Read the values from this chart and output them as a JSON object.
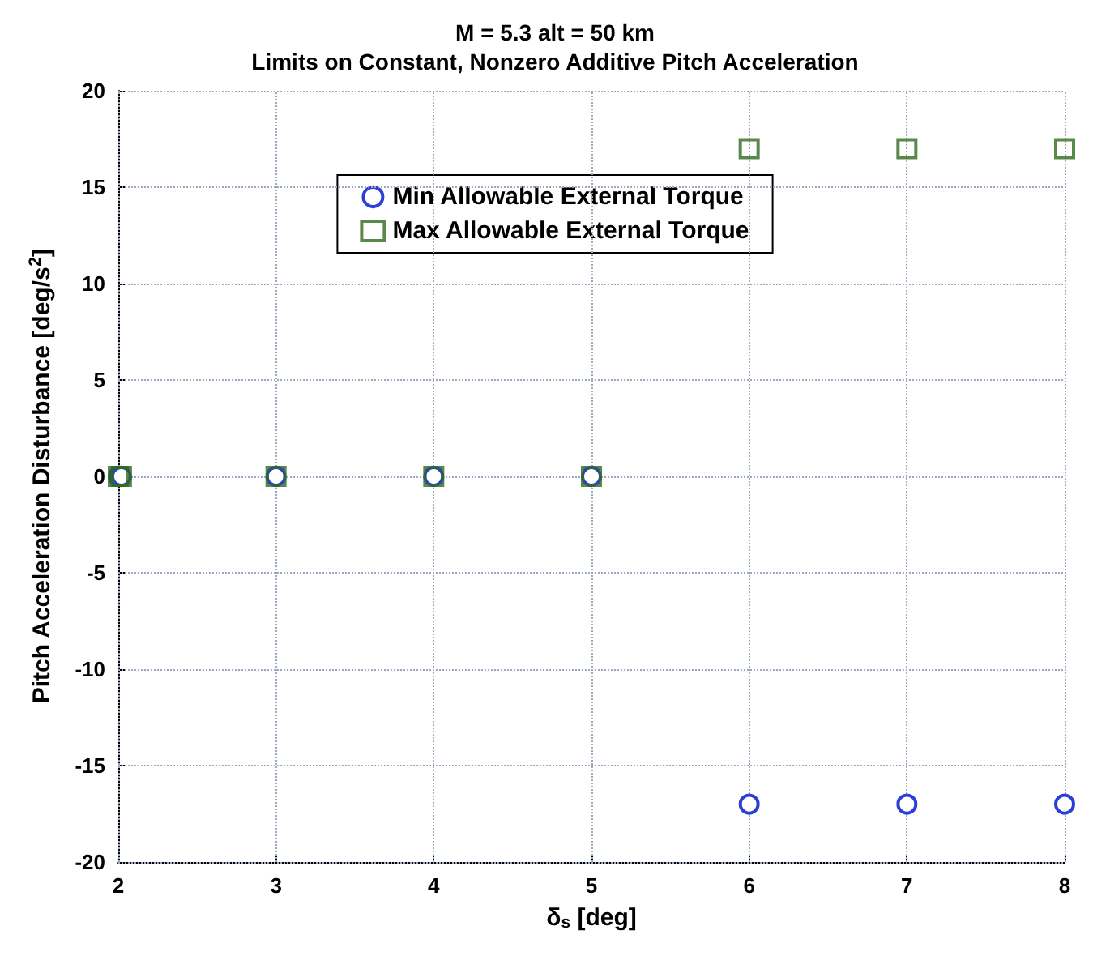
{
  "chart_data": {
    "type": "scatter",
    "title": "M = 5.3 alt = 50 km",
    "subtitle": "Limits on Constant, Nonzero Additive Pitch Acceleration",
    "xlabel": "δ$_{s}$ [deg]",
    "ylabel": "Pitch Acceleration Disturbance [deg/s$^{2}$]",
    "xlim": [
      2,
      8
    ],
    "xticks": [
      2,
      3,
      4,
      5,
      6,
      7,
      8
    ],
    "ylim": [
      -20,
      20
    ],
    "yticks": [
      -20,
      -15,
      -10,
      -5,
      0,
      5,
      10,
      15,
      20
    ],
    "grid": true,
    "legend": "top",
    "series": [
      {
        "name": "Min Allowable External Torque",
        "color": "#2b3fd6",
        "marker": "circle",
        "x": [
          2,
          2.02,
          3,
          4,
          5,
          6,
          7,
          8
        ],
        "values": [
          0,
          0,
          0,
          0,
          0,
          -17,
          -17,
          -17
        ]
      },
      {
        "name": "Max Allowable External Torque",
        "color": "#2f6a1e",
        "marker": "square",
        "x": [
          2,
          2.02,
          3,
          4,
          5,
          6,
          7,
          8
        ],
        "values": [
          0,
          0,
          0,
          0,
          0,
          17,
          17,
          17
        ]
      }
    ]
  }
}
